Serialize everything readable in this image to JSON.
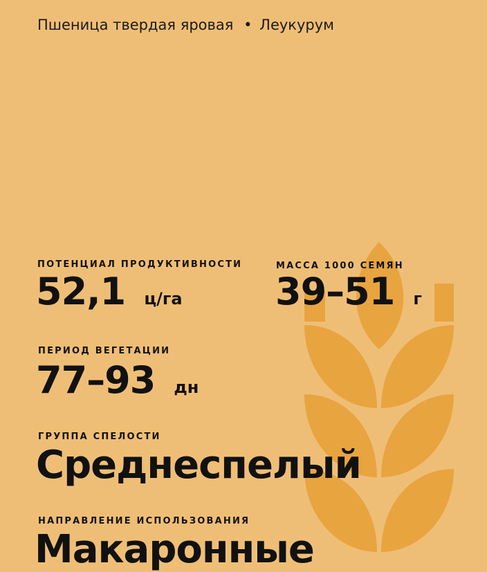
{
  "header": {
    "crop": "Пшеница твердая яровая",
    "separator": "•",
    "variety": "Леукурум"
  },
  "colors": {
    "background": "#EFBE76",
    "wheat_icon": "#E8A43F",
    "text": "#111111"
  },
  "stats": {
    "productivity": {
      "label": "ПОТЕНЦИАЛ ПРОДУКТИВНОСТИ",
      "value": "52,1",
      "unit": "ц/га"
    },
    "seed_mass": {
      "label": "МАССА 1000 СЕМЯН",
      "value": "39–51",
      "unit": "г"
    },
    "vegetation": {
      "label": "ПЕРИОД ВЕГЕТАЦИИ",
      "value": "77–93",
      "unit": "дн"
    },
    "ripeness": {
      "label": "ГРУППА СПЕЛОСТИ",
      "value": "Среднеспелый"
    },
    "usage": {
      "label": "НАПРАВЛЕНИЕ ИСПОЛЬЗОВАНИЯ",
      "value": "Макаронные"
    }
  }
}
